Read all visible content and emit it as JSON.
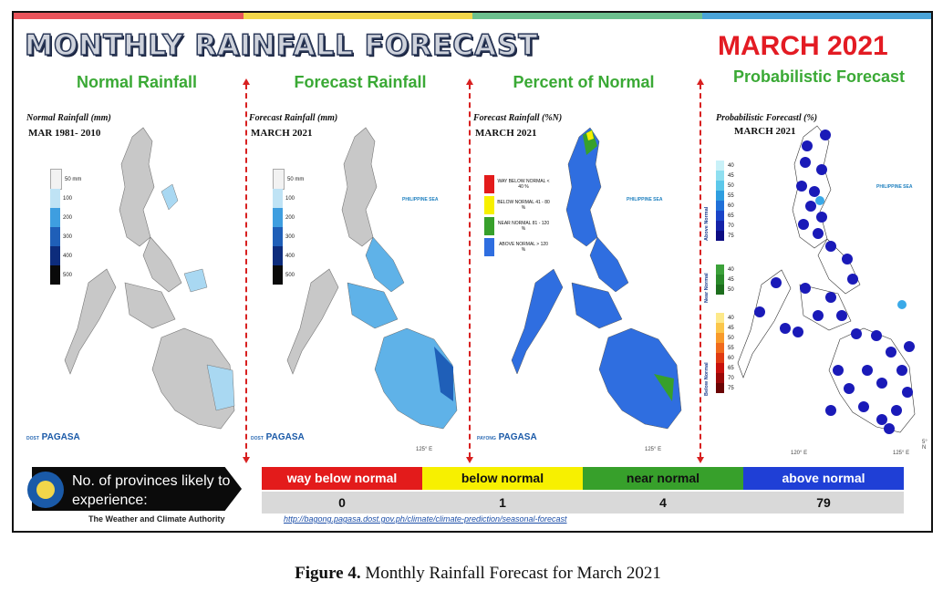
{
  "header": {
    "title": "MONTHLY RAINFALL FORECAST",
    "month": "MARCH 2021",
    "prob_heading": "Probabilistic Forecast"
  },
  "panels": [
    {
      "heading": "Normal Rainfall",
      "map_title": "Normal Rainfall (mm)",
      "map_sub": "MAR 1981- 2010"
    },
    {
      "heading": "Forecast Rainfall",
      "map_title": "Forecast Rainfall (mm)",
      "map_sub": "MARCH 2021"
    },
    {
      "heading": "Percent of Normal",
      "map_title": "Forecast Rainfall (%N)",
      "map_sub": "MARCH 2021"
    },
    {
      "heading": "Probabilistic Forecast",
      "map_title": "Probabilistic Forecastl (%)",
      "map_sub": "MARCH 2021"
    }
  ],
  "rain_legend": {
    "labels": [
      "50 mm",
      "100",
      "200",
      "300",
      "400",
      "500"
    ],
    "colors": [
      "#f2f2f2",
      "#bfe3f5",
      "#3e9ee0",
      "#1f5fb8",
      "#0d2c7c",
      "#0a0a0a"
    ]
  },
  "pct_legend": [
    {
      "label": "WAY BELOW NORMAL < 40 %",
      "color": "#e31b1b"
    },
    {
      "label": "BELOW NORMAL 41 - 80 %",
      "color": "#f7f000"
    },
    {
      "label": "NEAR NORMAL 81 - 120 %",
      "color": "#37a02b"
    },
    {
      "label": "ABOVE NORMAL > 120 %",
      "color": "#2f6ee0"
    }
  ],
  "prob_legend": {
    "above": {
      "label": "Above Normal",
      "ticks": [
        "40",
        "45",
        "50",
        "55",
        "60",
        "65",
        "70",
        "75"
      ]
    },
    "near": {
      "label": "Near Normal",
      "ticks": [
        "40",
        "45",
        "50"
      ]
    },
    "below": {
      "label": "Below Normal",
      "ticks": [
        "40",
        "45",
        "50",
        "55",
        "60",
        "65",
        "70",
        "75"
      ]
    }
  },
  "map_labels": {
    "sea": "PHILIPPINE SEA",
    "lon120": "120° E",
    "lon125": "125° E",
    "lat5": "5° N",
    "lat10": "10° N",
    "lat15": "15° N",
    "lat20": "20°"
  },
  "logo": {
    "dost": "DOST",
    "payong": "PAYONG",
    "pagasa": "PAGASA"
  },
  "bottom": {
    "provinces_label": "No. of provinces likely to experience:",
    "categories": [
      {
        "label": "way below normal",
        "color": "#e31b1b",
        "text_color": "#ffffff",
        "count": "0"
      },
      {
        "label": "below normal",
        "color": "#f7f000",
        "text_color": "#111111",
        "count": "1"
      },
      {
        "label": "near normal",
        "color": "#37a02b",
        "text_color": "#111111",
        "count": "4"
      },
      {
        "label": "above normal",
        "color": "#1f3fd6",
        "text_color": "#ffffff",
        "count": "79"
      }
    ],
    "url": "http://bagong.pagasa.dost.gov.ph/climate/climate-prediction/seasonal-forecast",
    "agency": "The Weather and Climate Authority"
  },
  "caption": {
    "label": "Figure 4.",
    "text": "Monthly Rainfall Forecast for March 2021"
  }
}
